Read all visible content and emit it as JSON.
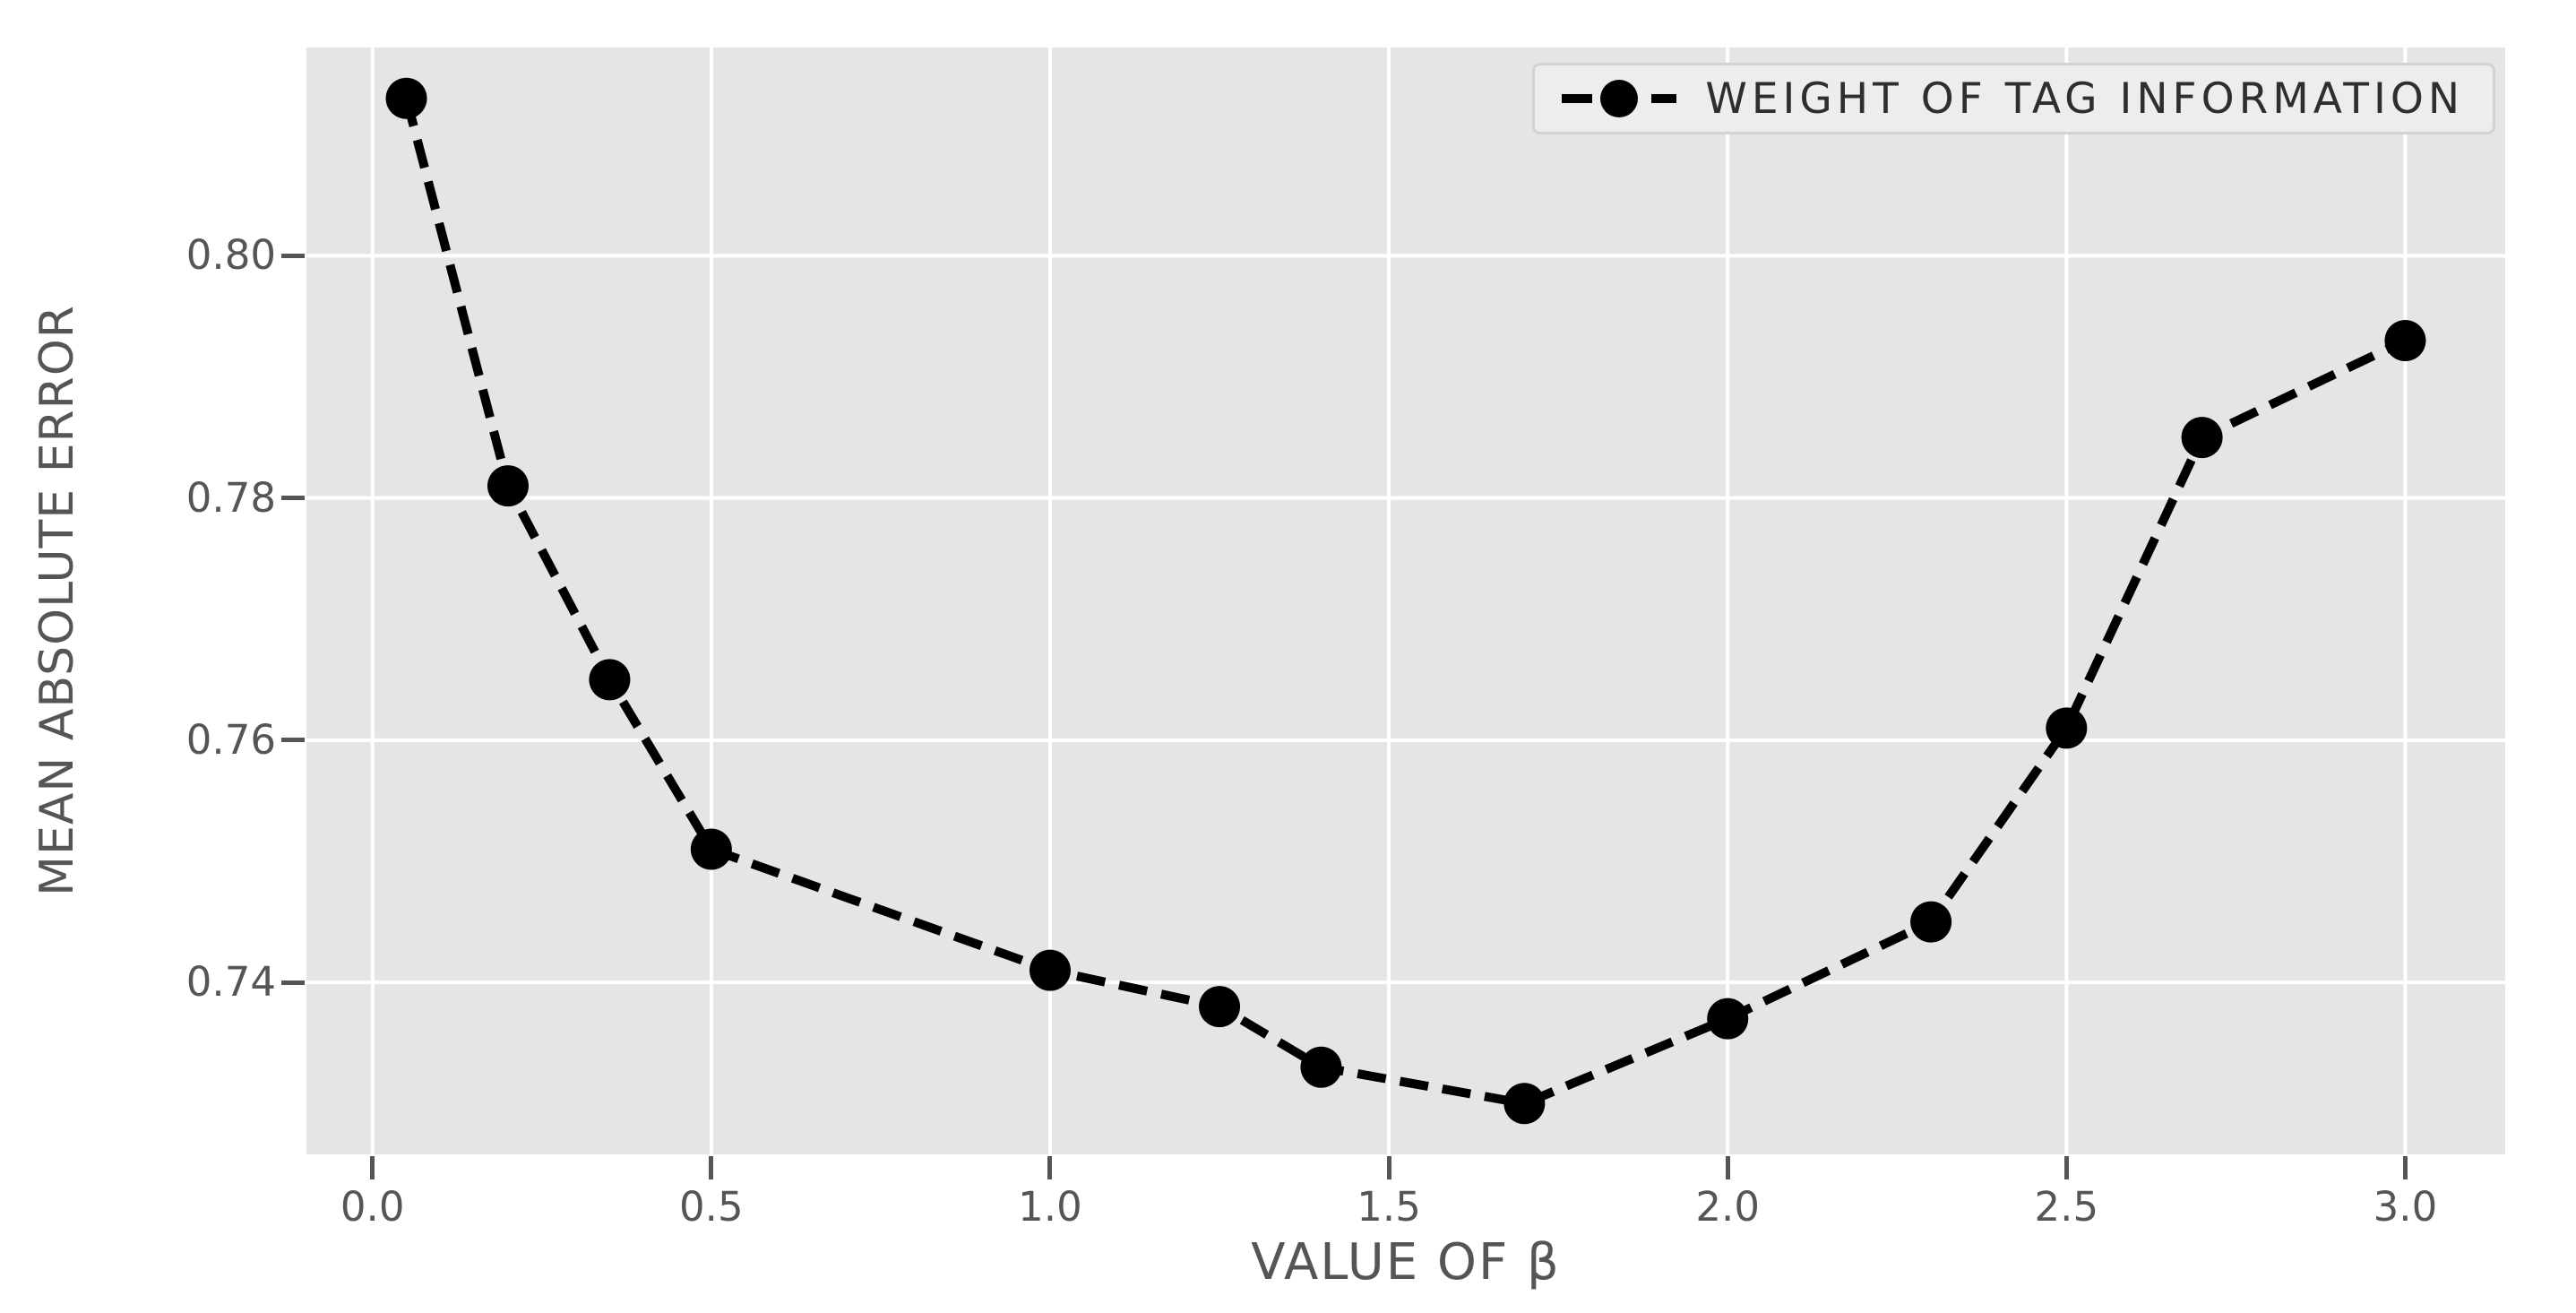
{
  "chart_data": {
    "type": "line",
    "title": "",
    "xlabel": "VALUE OF β",
    "ylabel": "MEAN ABSOLUTE ERROR",
    "series": [
      {
        "name": "WEIGHT OF TAG INFORMATION",
        "x": [
          0.05,
          0.2,
          0.35,
          0.5,
          1.0,
          1.25,
          1.4,
          1.7,
          2.0,
          2.3,
          2.5,
          2.7,
          3.0
        ],
        "y": [
          0.813,
          0.781,
          0.765,
          0.751,
          0.741,
          0.738,
          0.733,
          0.73,
          0.737,
          0.745,
          0.761,
          0.785,
          0.793
        ],
        "line_style": "dashed",
        "marker": "circle",
        "color": "#000000"
      }
    ],
    "xlim": [
      -0.0975,
      3.1475
    ],
    "ylim": [
      0.7258,
      0.8172
    ],
    "x_ticks": [
      0.0,
      0.5,
      1.0,
      1.5,
      2.0,
      2.5,
      3.0
    ],
    "x_tick_labels": [
      "0.0",
      "0.5",
      "1.0",
      "1.5",
      "2.0",
      "2.5",
      "3.0"
    ],
    "y_ticks": [
      0.74,
      0.76,
      0.78,
      0.8
    ],
    "y_tick_labels": [
      "0.74",
      "0.76",
      "0.78",
      "0.80"
    ],
    "grid": true,
    "legend": {
      "position": "upper right",
      "label": "WEIGHT OF TAG INFORMATION"
    },
    "style": {
      "figure_bg": "#ffffff",
      "plot_bg": "#e5e5e5",
      "grid_color": "#ffffff",
      "tick_color": "#555555",
      "text_color": "#555555",
      "legend_text_color": "#2e2e2e",
      "legend_bg": "#ededed",
      "legend_border": "#d2d2d2",
      "line_color": "#000000"
    }
  }
}
